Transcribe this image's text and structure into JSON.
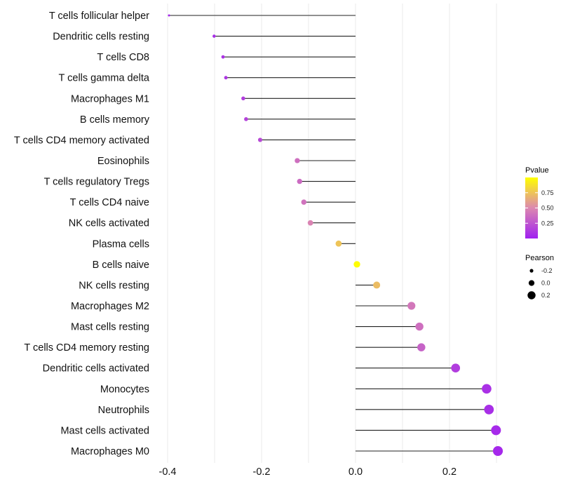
{
  "chart_data": {
    "type": "lollipop",
    "title": "",
    "xlabel": "",
    "ylabel": "",
    "xlim": [
      -0.42,
      0.34
    ],
    "x_ticks": [
      -0.4,
      -0.2,
      0.0,
      0.2
    ],
    "x_tick_labels": [
      "-0.4",
      "-0.2",
      "0.0",
      "0.2"
    ],
    "grid": true,
    "categories": [
      "T cells follicular helper",
      "Dendritic cells resting",
      "T cells CD8",
      "T cells gamma delta",
      "Macrophages M1",
      "B cells memory",
      "T cells CD4 memory activated",
      "Eosinophils",
      "T cells regulatory  Tregs",
      "T cells CD4 naive",
      "NK cells activated",
      "Plasma cells",
      "B cells naive",
      "NK cells resting",
      "Macrophages M2",
      "Mast cells resting",
      "T cells CD4 memory resting",
      "Dendritic cells activated",
      "Monocytes",
      "Neutrophils",
      "Mast cells activated",
      "Macrophages M0"
    ],
    "pearson": [
      -0.397,
      -0.301,
      -0.282,
      -0.276,
      -0.239,
      -0.233,
      -0.203,
      -0.124,
      -0.119,
      -0.11,
      -0.096,
      -0.036,
      0.003,
      0.045,
      0.119,
      0.136,
      0.14,
      0.213,
      0.279,
      0.284,
      0.299,
      0.303
    ],
    "pvalue": [
      0.04,
      0.07,
      0.09,
      0.11,
      0.14,
      0.17,
      0.2,
      0.38,
      0.36,
      0.4,
      0.48,
      0.75,
      0.99,
      0.72,
      0.42,
      0.38,
      0.32,
      0.14,
      0.08,
      0.07,
      0.05,
      0.04
    ],
    "color_scale": {
      "low": "#A020F0",
      "high": "#FFFF00"
    },
    "legend": {
      "placement": "right",
      "color_title": "Pvalue",
      "color_ticks": [
        0.25,
        0.5,
        0.75
      ],
      "color_tick_labels": [
        "0.25",
        "0.50",
        "0.75"
      ],
      "size_title": "Pearson",
      "size_values": [
        -0.2,
        0.0,
        0.2
      ],
      "size_labels": [
        "-0.2",
        "0.0",
        "0.2"
      ]
    }
  }
}
